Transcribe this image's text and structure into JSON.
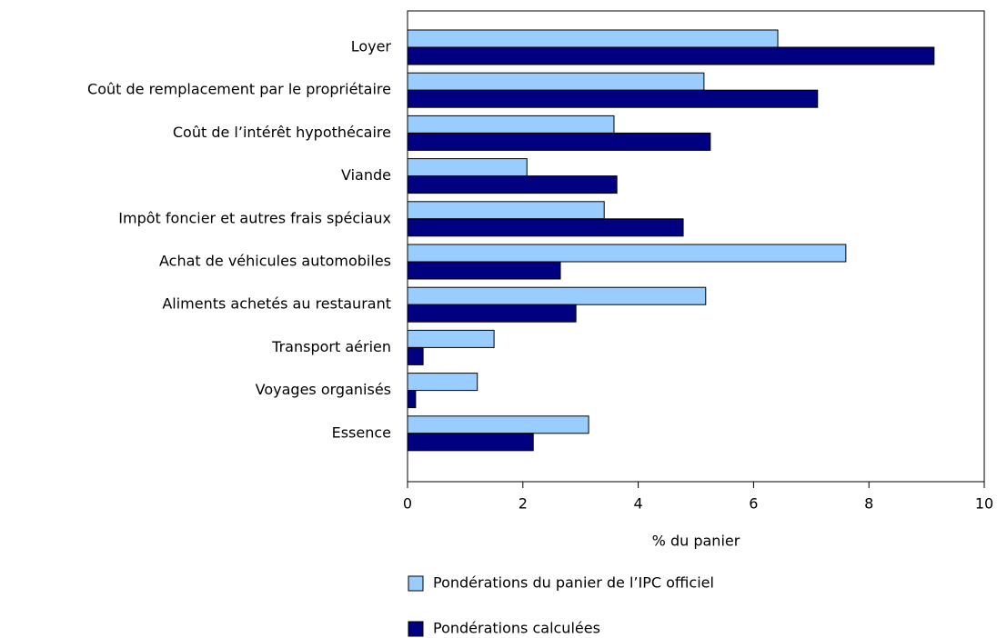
{
  "chart_data": {
    "type": "bar",
    "orientation": "horizontal",
    "x_label": "% du panier",
    "categories": [
      "Loyer",
      "Coût de remplacement par le propriétaire",
      "Coût de l’intérêt hypothécaire",
      "Viande",
      "Impôt foncier et autres frais spéciaux",
      "Achat de véhicules automobiles",
      "Aliments achetés au restaurant",
      "Transport aérien",
      "Voyages organisés",
      "Essence"
    ],
    "series": [
      {
        "name": "Pondérations du panier de l’IPC officiel",
        "color": "#99ccff",
        "values": [
          6.42,
          5.14,
          3.58,
          2.07,
          3.41,
          7.6,
          5.17,
          1.5,
          1.21,
          3.14
        ]
      },
      {
        "name": "Pondérations calculées",
        "color": "#000080",
        "values": [
          9.13,
          7.11,
          5.25,
          3.63,
          4.78,
          2.65,
          2.92,
          0.27,
          0.14,
          2.18
        ]
      }
    ],
    "xlim": [
      0,
      10
    ],
    "xticks": [
      0,
      2,
      4,
      6,
      8,
      10
    ],
    "grid": false,
    "legend": "bottom"
  }
}
